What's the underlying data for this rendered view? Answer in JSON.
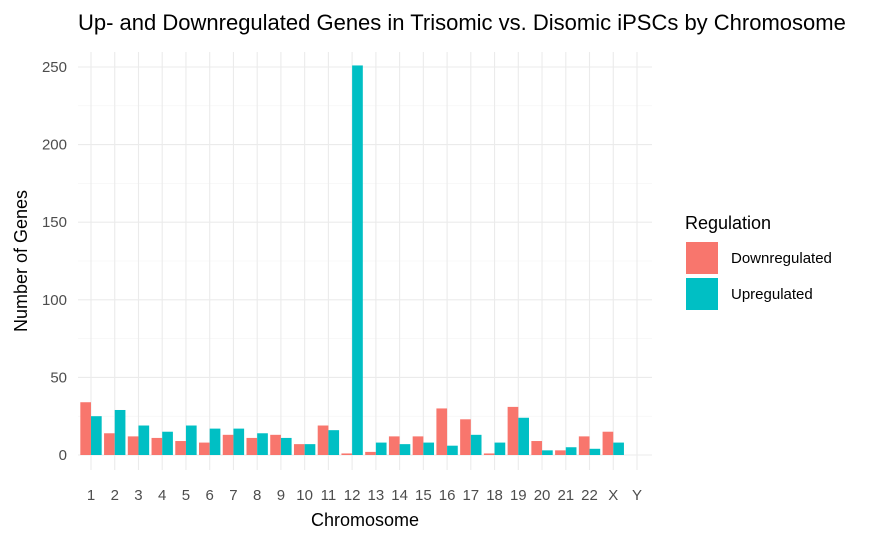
{
  "chart_data": {
    "type": "bar",
    "title": "Up- and Downregulated Genes in Trisomic vs. Disomic iPSCs by Chromosome",
    "xlabel": "Chromosome",
    "ylabel": "Number of Genes",
    "categories": [
      "1",
      "2",
      "3",
      "4",
      "5",
      "6",
      "7",
      "8",
      "9",
      "10",
      "11",
      "12",
      "13",
      "14",
      "15",
      "16",
      "17",
      "18",
      "19",
      "20",
      "21",
      "22",
      "X",
      "Y"
    ],
    "y_ticks": [
      0,
      50,
      100,
      150,
      200,
      250
    ],
    "ylim": [
      0,
      260
    ],
    "grid": true,
    "legend_placement": "right",
    "legend_title": "Regulation",
    "series": [
      {
        "name": "Downregulated",
        "color": "#F8766D",
        "values": [
          34,
          14,
          12,
          11,
          9,
          8,
          13,
          11,
          13,
          7,
          19,
          1,
          2,
          12,
          12,
          30,
          23,
          1,
          31,
          9,
          3,
          12,
          15,
          null
        ]
      },
      {
        "name": "Upregulated",
        "color": "#00BFC4",
        "values": [
          25,
          29,
          19,
          15,
          19,
          17,
          17,
          14,
          11,
          7,
          16,
          251,
          8,
          7,
          8,
          6,
          13,
          8,
          24,
          3,
          5,
          4,
          8,
          null
        ]
      }
    ]
  }
}
